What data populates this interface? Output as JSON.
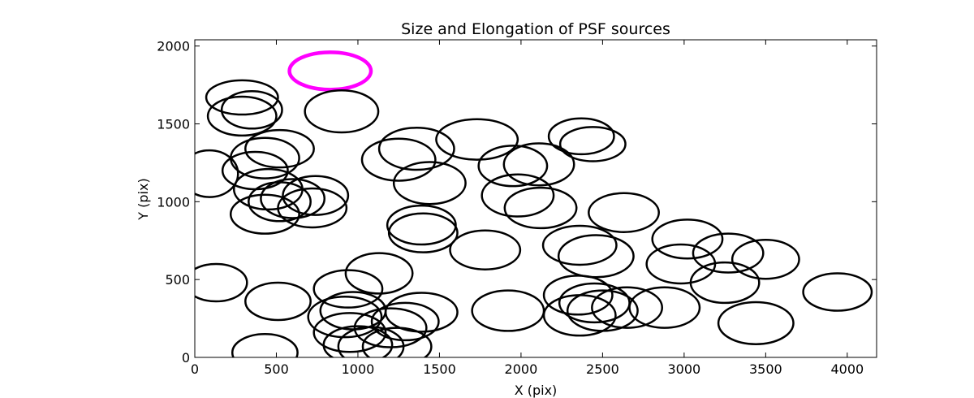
{
  "chart_data": {
    "type": "scatter",
    "title": "Size and Elongation of PSF sources",
    "xlabel": "X (pix)",
    "ylabel": "Y (pix)",
    "xlim": [
      0,
      4180
    ],
    "ylim": [
      0,
      2040
    ],
    "xticks": [
      0,
      500,
      1000,
      1500,
      2000,
      2500,
      3000,
      3500,
      4000
    ],
    "yticks": [
      0,
      500,
      1000,
      1500,
      2000
    ],
    "xtick_labels": [
      "0",
      "500",
      "1000",
      "1500",
      "2000",
      "2500",
      "3000",
      "3500",
      "4000"
    ],
    "ytick_labels": [
      "0",
      "500",
      "1000",
      "1500",
      "2000"
    ],
    "grid": false,
    "colors": {
      "default": "#000000",
      "highlight": "#ff00ff"
    },
    "sources": [
      {
        "x": 830,
        "y": 1840,
        "w": 500,
        "h": 240,
        "color": "#ff00ff"
      },
      {
        "x": 290,
        "y": 1670,
        "w": 440,
        "h": 220,
        "color": "#000000"
      },
      {
        "x": 290,
        "y": 1550,
        "w": 420,
        "h": 250,
        "color": "#000000"
      },
      {
        "x": 350,
        "y": 1590,
        "w": 370,
        "h": 240,
        "color": "#000000"
      },
      {
        "x": 900,
        "y": 1580,
        "w": 450,
        "h": 270,
        "color": "#000000"
      },
      {
        "x": 90,
        "y": 1180,
        "w": 350,
        "h": 300,
        "color": "#000000"
      },
      {
        "x": 520,
        "y": 1340,
        "w": 420,
        "h": 240,
        "color": "#000000"
      },
      {
        "x": 430,
        "y": 1280,
        "w": 420,
        "h": 260,
        "color": "#000000"
      },
      {
        "x": 370,
        "y": 1200,
        "w": 400,
        "h": 240,
        "color": "#000000"
      },
      {
        "x": 450,
        "y": 1080,
        "w": 420,
        "h": 260,
        "color": "#000000"
      },
      {
        "x": 520,
        "y": 1000,
        "w": 380,
        "h": 250,
        "color": "#000000"
      },
      {
        "x": 600,
        "y": 1020,
        "w": 390,
        "h": 250,
        "color": "#000000"
      },
      {
        "x": 740,
        "y": 1040,
        "w": 400,
        "h": 250,
        "color": "#000000"
      },
      {
        "x": 720,
        "y": 960,
        "w": 420,
        "h": 250,
        "color": "#000000"
      },
      {
        "x": 430,
        "y": 920,
        "w": 420,
        "h": 250,
        "color": "#000000"
      },
      {
        "x": 1250,
        "y": 1270,
        "w": 450,
        "h": 270,
        "color": "#000000"
      },
      {
        "x": 1360,
        "y": 1340,
        "w": 460,
        "h": 270,
        "color": "#000000"
      },
      {
        "x": 1440,
        "y": 1120,
        "w": 440,
        "h": 270,
        "color": "#000000"
      },
      {
        "x": 1390,
        "y": 850,
        "w": 420,
        "h": 250,
        "color": "#000000"
      },
      {
        "x": 1400,
        "y": 800,
        "w": 420,
        "h": 250,
        "color": "#000000"
      },
      {
        "x": 1730,
        "y": 1400,
        "w": 500,
        "h": 260,
        "color": "#000000"
      },
      {
        "x": 1780,
        "y": 690,
        "w": 430,
        "h": 250,
        "color": "#000000"
      },
      {
        "x": 1950,
        "y": 1230,
        "w": 420,
        "h": 260,
        "color": "#000000"
      },
      {
        "x": 1980,
        "y": 1040,
        "w": 440,
        "h": 270,
        "color": "#000000"
      },
      {
        "x": 2110,
        "y": 1240,
        "w": 430,
        "h": 270,
        "color": "#000000"
      },
      {
        "x": 2120,
        "y": 960,
        "w": 440,
        "h": 260,
        "color": "#000000"
      },
      {
        "x": 2370,
        "y": 1420,
        "w": 400,
        "h": 230,
        "color": "#000000"
      },
      {
        "x": 2440,
        "y": 1370,
        "w": 400,
        "h": 220,
        "color": "#000000"
      },
      {
        "x": 2630,
        "y": 930,
        "w": 430,
        "h": 250,
        "color": "#000000"
      },
      {
        "x": 2360,
        "y": 720,
        "w": 450,
        "h": 250,
        "color": "#000000"
      },
      {
        "x": 2460,
        "y": 650,
        "w": 460,
        "h": 270,
        "color": "#000000"
      },
      {
        "x": 3020,
        "y": 760,
        "w": 430,
        "h": 250,
        "color": "#000000"
      },
      {
        "x": 2980,
        "y": 600,
        "w": 420,
        "h": 250,
        "color": "#000000"
      },
      {
        "x": 3270,
        "y": 670,
        "w": 430,
        "h": 250,
        "color": "#000000"
      },
      {
        "x": 3500,
        "y": 630,
        "w": 410,
        "h": 250,
        "color": "#000000"
      },
      {
        "x": 3250,
        "y": 480,
        "w": 420,
        "h": 260,
        "color": "#000000"
      },
      {
        "x": 3440,
        "y": 220,
        "w": 460,
        "h": 270,
        "color": "#000000"
      },
      {
        "x": 3940,
        "y": 420,
        "w": 420,
        "h": 240,
        "color": "#000000"
      },
      {
        "x": 2880,
        "y": 320,
        "w": 430,
        "h": 260,
        "color": "#000000"
      },
      {
        "x": 2650,
        "y": 320,
        "w": 430,
        "h": 260,
        "color": "#000000"
      },
      {
        "x": 2500,
        "y": 300,
        "w": 430,
        "h": 260,
        "color": "#000000"
      },
      {
        "x": 2350,
        "y": 400,
        "w": 420,
        "h": 250,
        "color": "#000000"
      },
      {
        "x": 2360,
        "y": 270,
        "w": 440,
        "h": 260,
        "color": "#000000"
      },
      {
        "x": 2450,
        "y": 350,
        "w": 430,
        "h": 250,
        "color": "#000000"
      },
      {
        "x": 1920,
        "y": 300,
        "w": 440,
        "h": 260,
        "color": "#000000"
      },
      {
        "x": 130,
        "y": 480,
        "w": 380,
        "h": 240,
        "color": "#000000"
      },
      {
        "x": 510,
        "y": 360,
        "w": 400,
        "h": 240,
        "color": "#000000"
      },
      {
        "x": 430,
        "y": 30,
        "w": 400,
        "h": 240,
        "color": "#000000"
      },
      {
        "x": 1130,
        "y": 540,
        "w": 410,
        "h": 260,
        "color": "#000000"
      },
      {
        "x": 940,
        "y": 440,
        "w": 420,
        "h": 240,
        "color": "#000000"
      },
      {
        "x": 920,
        "y": 260,
        "w": 450,
        "h": 260,
        "color": "#000000"
      },
      {
        "x": 970,
        "y": 300,
        "w": 400,
        "h": 240,
        "color": "#000000"
      },
      {
        "x": 950,
        "y": 160,
        "w": 440,
        "h": 250,
        "color": "#000000"
      },
      {
        "x": 1000,
        "y": 80,
        "w": 420,
        "h": 240,
        "color": "#000000"
      },
      {
        "x": 1080,
        "y": 70,
        "w": 400,
        "h": 250,
        "color": "#000000"
      },
      {
        "x": 1200,
        "y": 190,
        "w": 440,
        "h": 250,
        "color": "#000000"
      },
      {
        "x": 1290,
        "y": 230,
        "w": 410,
        "h": 240,
        "color": "#000000"
      },
      {
        "x": 1240,
        "y": 70,
        "w": 420,
        "h": 240,
        "color": "#000000"
      },
      {
        "x": 1390,
        "y": 290,
        "w": 440,
        "h": 250,
        "color": "#000000"
      }
    ]
  }
}
